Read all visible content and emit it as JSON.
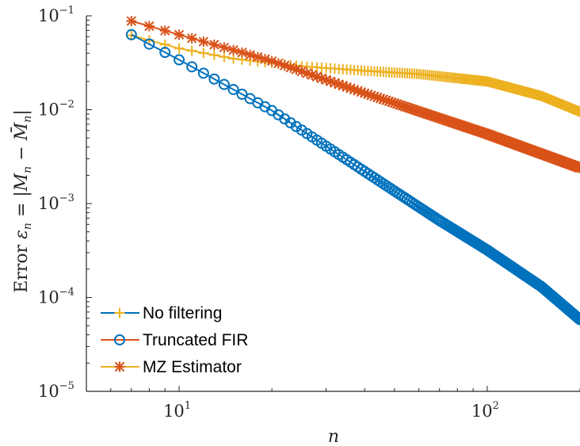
{
  "chart_data": {
    "type": "line",
    "title": "",
    "xlabel": "n",
    "ylabel": "Error ε_n = |M_n − M̄_n|",
    "xscale": "log",
    "yscale": "log",
    "xlim": [
      5,
      200
    ],
    "ylim": [
      1e-05,
      0.1
    ],
    "grid": false,
    "legend_position": "bottom-left",
    "x_ticks": [
      {
        "value": 10,
        "base": "10",
        "exp": "1"
      },
      {
        "value": 100,
        "base": "10",
        "exp": "2"
      }
    ],
    "y_ticks": [
      {
        "value": 0.1,
        "base": "10",
        "exp": "−1"
      },
      {
        "value": 0.01,
        "base": "10",
        "exp": "−2"
      },
      {
        "value": 0.001,
        "base": "10",
        "exp": "−3"
      },
      {
        "value": 0.0001,
        "base": "10",
        "exp": "−4"
      },
      {
        "value": 1e-05,
        "base": "10",
        "exp": "−5"
      }
    ],
    "x_range": [
      7,
      200
    ],
    "series": [
      {
        "name": "No filtering",
        "color": "#EDB120",
        "marker": "plus",
        "anchors": [
          [
            7,
            0.062
          ],
          [
            10,
            0.045
          ],
          [
            15,
            0.035
          ],
          [
            25,
            0.029
          ],
          [
            40,
            0.026
          ],
          [
            60,
            0.024
          ],
          [
            100,
            0.02
          ],
          [
            150,
            0.014
          ],
          [
            200,
            0.0095
          ]
        ]
      },
      {
        "name": "Truncated FIR",
        "color": "#0072BD",
        "marker": "circle",
        "anchors": [
          [
            7,
            0.063
          ],
          [
            10,
            0.034
          ],
          [
            20,
            0.0098
          ],
          [
            40,
            0.0022
          ],
          [
            70,
            0.00066
          ],
          [
            100,
            0.00032
          ],
          [
            150,
            0.00013
          ],
          [
            200,
            5.8e-05
          ]
        ]
      },
      {
        "name": "MZ Estimator",
        "color": "#D95319",
        "marker": "asterisk",
        "anchors": [
          [
            7,
            0.088
          ],
          [
            10,
            0.063
          ],
          [
            20,
            0.033
          ],
          [
            40,
            0.015
          ],
          [
            100,
            0.0055
          ],
          [
            200,
            0.0024
          ]
        ]
      }
    ],
    "legend": [
      {
        "label": "No filtering",
        "line_color": "#0072BD",
        "marker_color": "#EDB120",
        "marker": "plus"
      },
      {
        "label": "Truncated FIR",
        "line_color": "#D95319",
        "marker_color": "#0072BD",
        "marker": "circle"
      },
      {
        "label": "MZ Estimator",
        "line_color": "#EDB120",
        "marker_color": "#D95319",
        "marker": "asterisk"
      }
    ]
  }
}
